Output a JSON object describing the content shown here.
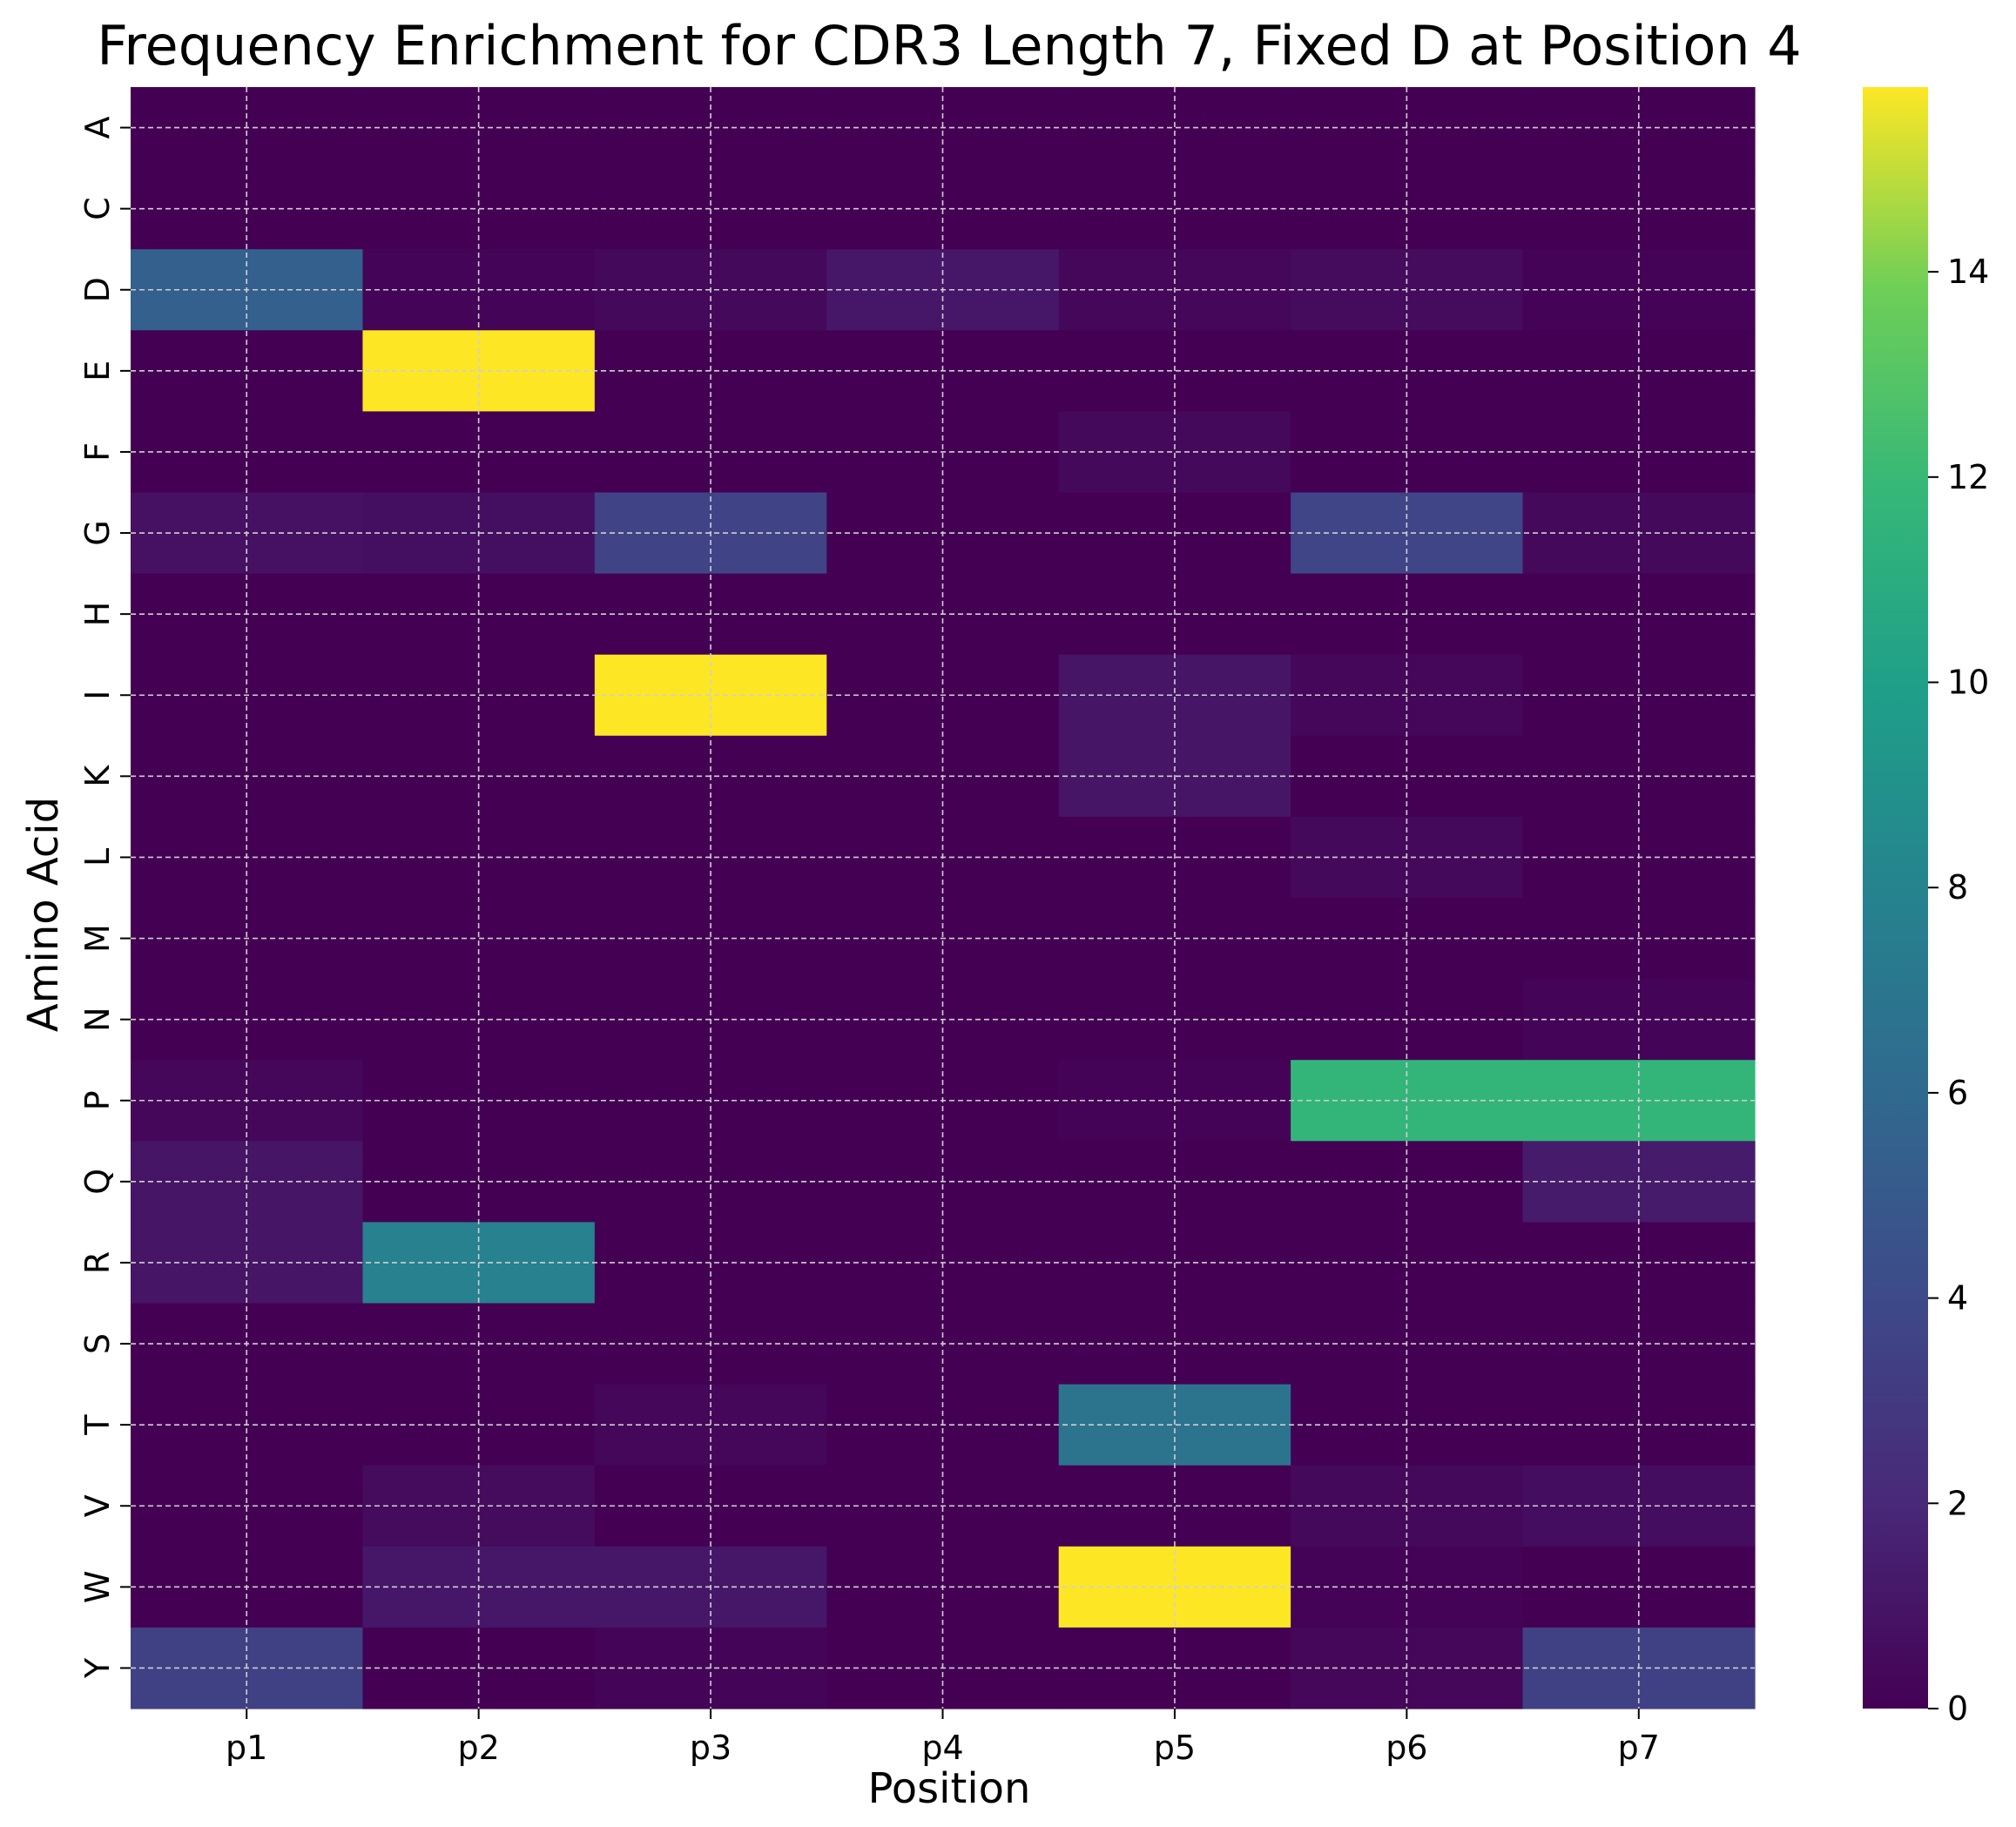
{
  "chart_data": {
    "type": "heatmap",
    "title": "Frequency Enrichment for CDR3 Length 7, Fixed D at Position 4",
    "xlabel": "Position",
    "ylabel": "Amino Acid",
    "x_categories": [
      "p1",
      "p2",
      "p3",
      "p4",
      "p5",
      "p6",
      "p7"
    ],
    "y_categories": [
      "A",
      "C",
      "D",
      "E",
      "F",
      "G",
      "H",
      "I",
      "K",
      "L",
      "M",
      "N",
      "P",
      "Q",
      "R",
      "S",
      "T",
      "V",
      "W",
      "Y"
    ],
    "values": [
      [
        0.0,
        0.0,
        0.0,
        0.0,
        0.0,
        0.0,
        0.0
      ],
      [
        0.0,
        0.0,
        0.0,
        0.0,
        0.0,
        0.0,
        0.0
      ],
      [
        5.4,
        0.2,
        0.4,
        1.1,
        0.3,
        0.5,
        0.1
      ],
      [
        0.0,
        15.8,
        0.0,
        0.0,
        0.0,
        0.0,
        0.0
      ],
      [
        0.0,
        0.0,
        0.0,
        0.0,
        0.4,
        0.0,
        0.0
      ],
      [
        0.8,
        0.7,
        3.6,
        0.0,
        0.0,
        3.7,
        0.4
      ],
      [
        0.0,
        0.0,
        0.0,
        0.0,
        0.0,
        0.0,
        0.0
      ],
      [
        0.0,
        0.0,
        15.8,
        0.0,
        1.0,
        0.3,
        0.0
      ],
      [
        0.0,
        0.0,
        0.0,
        0.0,
        1.0,
        0.0,
        0.0
      ],
      [
        0.0,
        0.0,
        0.0,
        0.0,
        0.0,
        0.4,
        0.0
      ],
      [
        0.0,
        0.0,
        0.0,
        0.0,
        0.0,
        0.0,
        0.0
      ],
      [
        0.0,
        0.0,
        0.0,
        0.0,
        0.0,
        0.0,
        0.2
      ],
      [
        0.3,
        0.0,
        0.0,
        0.0,
        0.1,
        11.7,
        11.7
      ],
      [
        1.0,
        0.0,
        0.0,
        0.0,
        0.0,
        0.0,
        1.3
      ],
      [
        1.0,
        7.8,
        0.0,
        0.0,
        0.0,
        0.0,
        0.0
      ],
      [
        0.0,
        0.0,
        0.0,
        0.0,
        0.0,
        0.0,
        0.0
      ],
      [
        0.0,
        0.0,
        0.3,
        0.0,
        6.8,
        0.0,
        0.0
      ],
      [
        0.0,
        0.5,
        0.0,
        0.0,
        0.0,
        0.4,
        0.6
      ],
      [
        0.0,
        1.1,
        1.1,
        0.0,
        15.8,
        0.1,
        0.0
      ],
      [
        3.5,
        0.0,
        0.2,
        0.0,
        0.0,
        0.3,
        3.5
      ]
    ],
    "colorbar": {
      "colormap": "viridis",
      "range": [
        0,
        15.8
      ],
      "ticks": [
        "0",
        "2",
        "4",
        "6",
        "8",
        "10",
        "12",
        "14"
      ]
    },
    "grid": true
  }
}
